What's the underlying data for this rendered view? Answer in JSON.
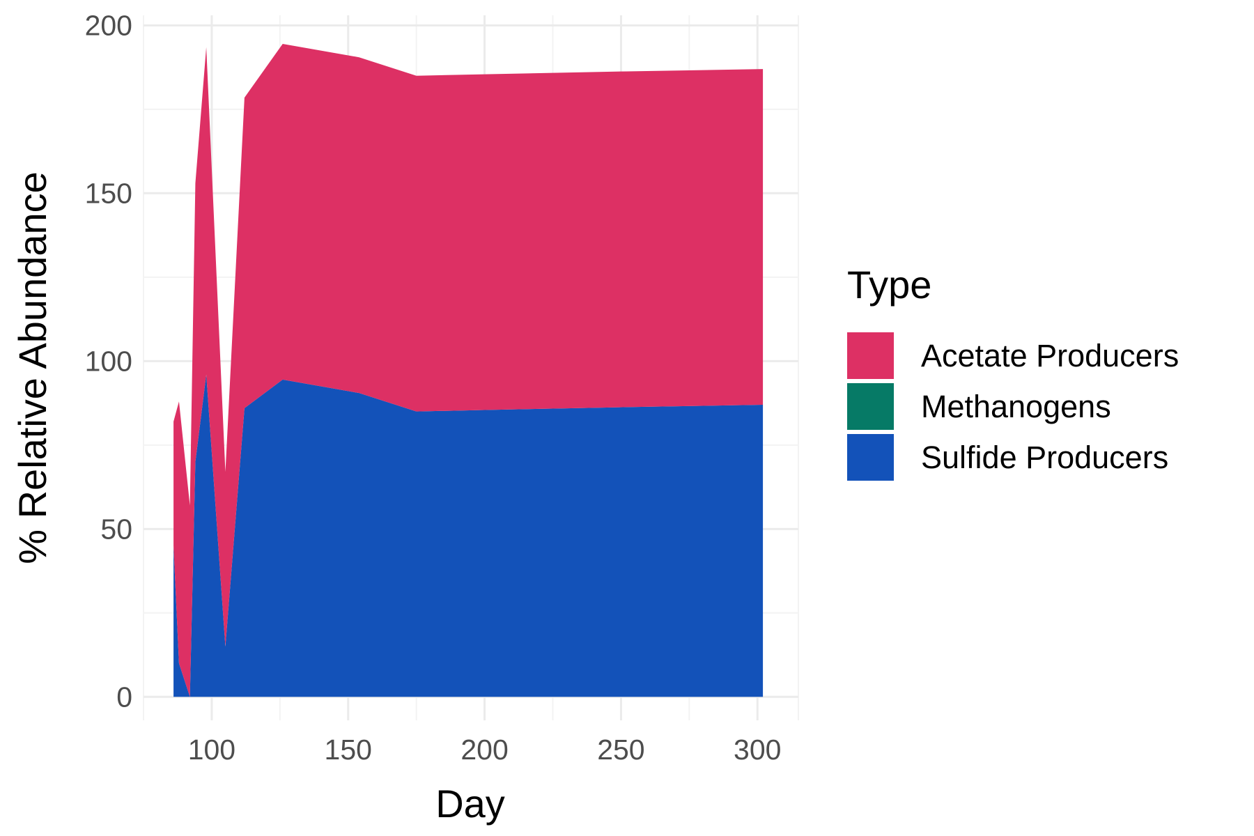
{
  "chart_data": {
    "type": "area",
    "stacked": true,
    "xlabel": "Day",
    "ylabel": "% Relative Abundance",
    "xlim": [
      75,
      315
    ],
    "ylim": [
      -7,
      203
    ],
    "xticks": [
      100,
      150,
      200,
      250,
      300
    ],
    "yticks": [
      0,
      50,
      100,
      150,
      200
    ],
    "grid": true,
    "legend": {
      "title": "Type",
      "position": "right"
    },
    "x": [
      86,
      88,
      92,
      94,
      98,
      105,
      112,
      126,
      140,
      154,
      175,
      203,
      252,
      302
    ],
    "series": [
      {
        "name": "Sulfide Producers",
        "color": "#1352b9",
        "values": [
          45,
          10,
          0,
          70,
          96,
          15,
          86,
          94.5,
          92.5,
          90.5,
          85,
          85.5,
          86.3,
          87
        ]
      },
      {
        "name": "Methanogens",
        "color": "#067a66",
        "values": [
          0,
          0,
          0,
          0,
          0,
          0,
          0,
          0,
          0,
          0,
          0,
          0,
          0,
          0
        ]
      },
      {
        "name": "Acetate Producers",
        "color": "#dd3064",
        "values": [
          37,
          78,
          57,
          83,
          97.5,
          52,
          92.5,
          100,
          100,
          100,
          100,
          100,
          100,
          100
        ]
      }
    ],
    "legend_order": [
      "Acetate Producers",
      "Methanogens",
      "Sulfide Producers"
    ]
  }
}
